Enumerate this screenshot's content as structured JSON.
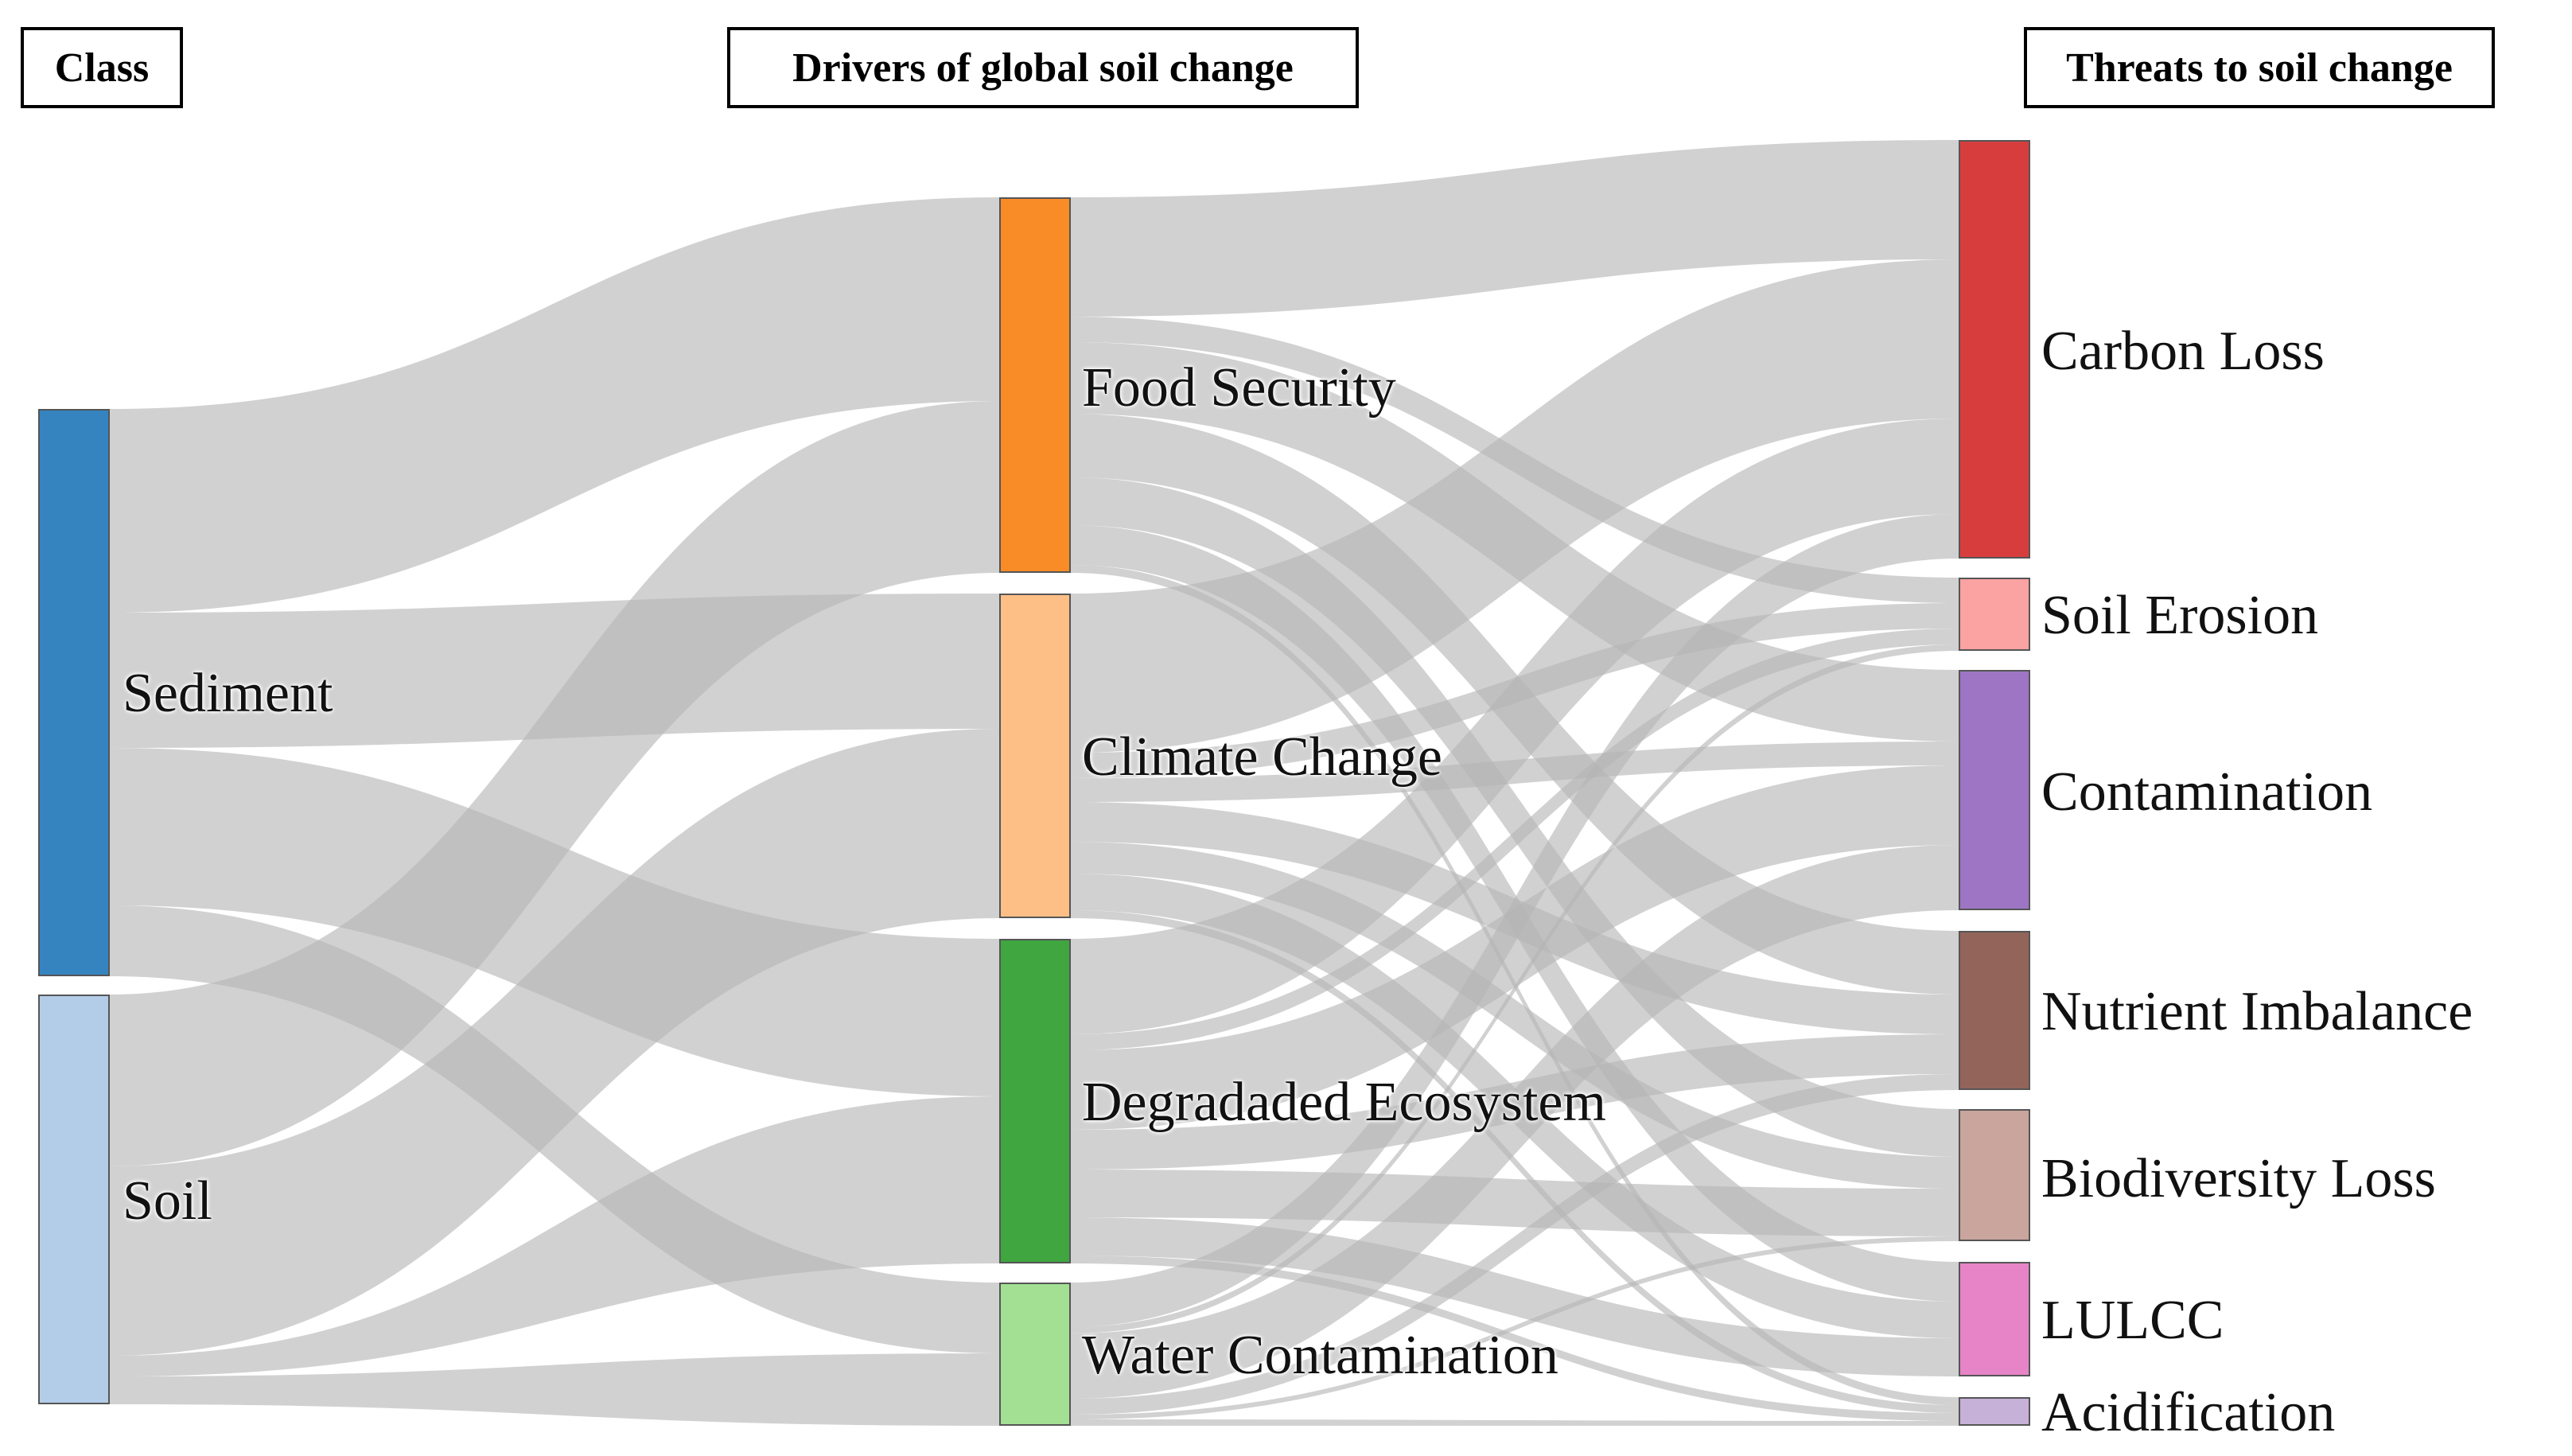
{
  "headers": {
    "class": "Class",
    "drivers": "Drivers of global soil change",
    "threats": "Threats to soil change"
  },
  "nodes": {
    "sediment": {
      "label": "Sediment",
      "color": "#3584c0"
    },
    "soil": {
      "label": "Soil",
      "color": "#b3cde9"
    },
    "food_security": {
      "label": "Food Security",
      "color": "#fa8c28"
    },
    "climate_change": {
      "label": "Climate Change",
      "color": "#fdbf86"
    },
    "degraded_ecosystem": {
      "label": "Degradaded Ecosystem",
      "color": "#3fa640"
    },
    "water_contamination": {
      "label": "Water Contamination",
      "color": "#a3e094"
    },
    "carbon_loss": {
      "label": "Carbon Loss",
      "color": "#d83d3e"
    },
    "soil_erosion": {
      "label": "Soil Erosion",
      "color": "#fba3a2"
    },
    "contamination": {
      "label": "Contamination",
      "color": "#9d75c4"
    },
    "nutrient_imbalance": {
      "label": "Nutrient Imbalance",
      "color": "#93645a"
    },
    "biodiversity_loss": {
      "label": "Biodiversity Loss",
      "color": "#c9a59d"
    },
    "lulcc": {
      "label": "LULCC",
      "color": "#e784c7"
    },
    "acidification": {
      "label": "Acidification",
      "color": "#c6b1d8"
    }
  },
  "link_color": "#b4b4b4"
}
